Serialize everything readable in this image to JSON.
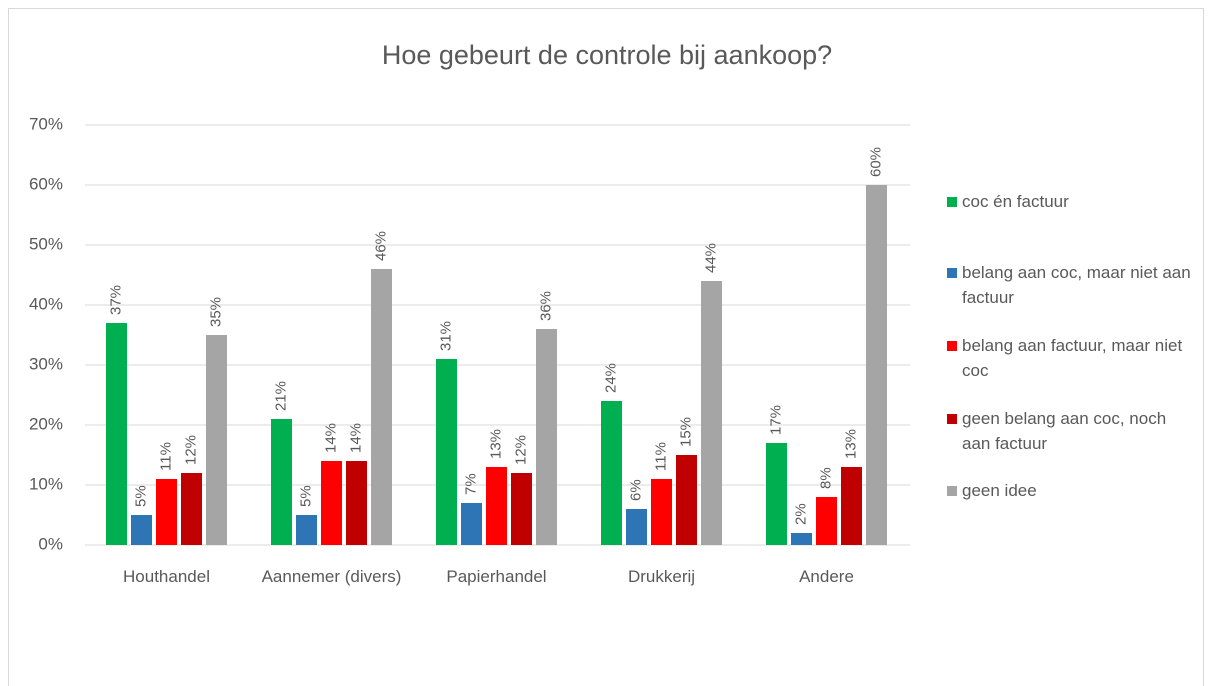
{
  "chart_data": {
    "type": "bar",
    "title": "Hoe gebeurt de controle bij aankoop?",
    "categories": [
      "Houthandel",
      "Aannemer (divers)",
      "Papierhandel",
      "Drukkerij",
      "Andere"
    ],
    "series": [
      {
        "name": "coc én factuur",
        "color": "#00b050",
        "values": [
          37,
          21,
          31,
          24,
          17
        ],
        "value_labels": [
          "37%",
          "21%",
          "31%",
          "24%",
          "17%"
        ]
      },
      {
        "name": "belang aan coc, maar niet aan factuur",
        "color": "#2e75b6",
        "values": [
          5,
          5,
          7,
          6,
          2
        ],
        "value_labels": [
          "5%",
          "5%",
          "7%",
          "6%",
          "2%"
        ]
      },
      {
        "name": "belang aan factuur, maar niet coc",
        "color": "#ff0000",
        "values": [
          11,
          14,
          13,
          11,
          8
        ],
        "value_labels": [
          "11%",
          "14%",
          "13%",
          "11%",
          "8%"
        ]
      },
      {
        "name": "geen belang aan coc, noch aan factuur",
        "color": "#c00000",
        "values": [
          12,
          14,
          12,
          15,
          13
        ],
        "value_labels": [
          "12%",
          "14%",
          "12%",
          "15%",
          "13%"
        ]
      },
      {
        "name": "geen idee",
        "color": "#a5a5a5",
        "values": [
          35,
          46,
          36,
          44,
          60
        ],
        "value_labels": [
          "35%",
          "46%",
          "36%",
          "44%",
          "60%"
        ]
      }
    ],
    "ylim": [
      0,
      70
    ],
    "yticks": [
      {
        "value": 0,
        "label": "0%"
      },
      {
        "value": 10,
        "label": "10%"
      },
      {
        "value": 20,
        "label": "20%"
      },
      {
        "value": 30,
        "label": "30%"
      },
      {
        "value": 40,
        "label": "40%"
      },
      {
        "value": 50,
        "label": "50%"
      },
      {
        "value": 60,
        "label": "60%"
      },
      {
        "value": 70,
        "label": "70%"
      }
    ],
    "grid": true,
    "legend": "right"
  }
}
